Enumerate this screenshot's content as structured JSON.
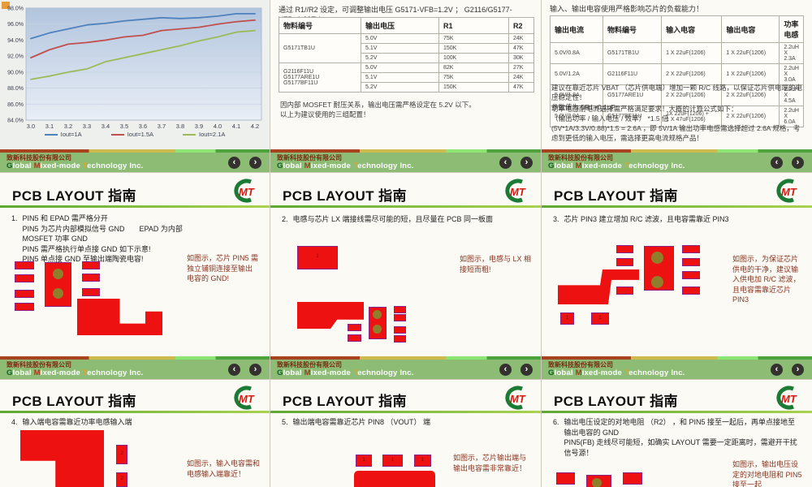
{
  "logo": {
    "text": "MT"
  },
  "footer": {
    "company_cn": "致新科技股份有限公司",
    "en_g": "G",
    "en_lobal": "lobal ",
    "en_m": "M",
    "en_ixed": "ixed-mode ",
    "en_t": "T",
    "en_rest": "echnology Inc.",
    "prev_icon": "‹",
    "next_icon": "›"
  },
  "chart_data": {
    "type": "line",
    "x": [
      3.0,
      3.1,
      3.2,
      3.3,
      3.4,
      3.5,
      3.6,
      3.7,
      3.8,
      3.9,
      4.0,
      4.1,
      4.2
    ],
    "xtick_labels": [
      "3.0",
      "3.1",
      "3.2",
      "3.3",
      "3.4",
      "3.5",
      "3.6",
      "3.7",
      "3.8",
      "3.9",
      "4.0",
      "4.1",
      "4.2"
    ],
    "ylim": [
      84,
      98
    ],
    "ytick_step": 2,
    "ytick_labels": [
      "84.0%",
      "86.0%",
      "88.0%",
      "90.0%",
      "92.0%",
      "94.0%",
      "96.0%",
      "98.0%"
    ],
    "grid": true,
    "legend_position": "bottom",
    "title": "",
    "xlabel": "",
    "ylabel": "",
    "series": [
      {
        "name": "Iout=1A",
        "color": "#4f81bd",
        "values": [
          94.2,
          94.9,
          95.4,
          95.9,
          96.1,
          96.4,
          96.6,
          96.8,
          96.7,
          96.8,
          97.0,
          97.3,
          97.3
        ]
      },
      {
        "name": "Iout=1.5A",
        "color": "#c0504d",
        "values": [
          91.8,
          92.8,
          93.5,
          93.7,
          94.0,
          94.4,
          94.6,
          95.2,
          95.4,
          95.6,
          96.0,
          96.3,
          96.5
        ]
      },
      {
        "name": "Iout=2.1A",
        "color": "#9bbb59",
        "values": [
          89.1,
          89.5,
          90.0,
          90.4,
          91.3,
          91.8,
          92.3,
          92.8,
          93.3,
          93.9,
          94.4,
          95.0,
          95.2
        ]
      }
    ]
  },
  "slides": {
    "pcb_title": "PCB LAYOUT 指南",
    "slide2": {
      "intro": "通过 R1//R2 设定，可调整输出电压  G5171-VFB=1.2V ；  G2116/G5177-VFB=1.227V",
      "table": {
        "headers": [
          "物料编号",
          "输出电压",
          "R1",
          "R2"
        ],
        "groups": [
          {
            "part": "G5171TB1U",
            "rows": [
              [
                "5.0V",
                "75K",
                "24K"
              ],
              [
                "5.1V",
                "150K",
                "47K"
              ],
              [
                "5.2V",
                "100K",
                "30K"
              ]
            ]
          },
          {
            "part": "G2116F11U\nG5177ARE1U\nG5177BF11U",
            "rows": [
              [
                "5.0V",
                "82K",
                "27K"
              ],
              [
                "5.1V",
                "75K",
                "24K"
              ],
              [
                "5.2V",
                "150K",
                "47K"
              ]
            ]
          }
        ]
      },
      "note": "因内部 MOSFET 耐压关系，输出电压需严格设定在 5.2V 以下。\n以上为建议使用的三组配置！"
    },
    "slide3": {
      "intro": "输入、输出电容使用严格影响芯片的负载能力！",
      "table": {
        "headers": [
          "输出电流",
          "物料编号",
          "输入电容",
          "输出电容",
          "功率电感"
        ],
        "rows": [
          [
            "5.0V/0.8A",
            "G5171TB1U",
            "1 X 22uF(1206)",
            "1 X 22uF(1206)",
            "2.2uH X 2.3A"
          ],
          [
            "5.0V/1.2A",
            "G2116F11U",
            "2 X 22uF(1206)",
            "1 X 22uF(1206)",
            "2.2uH X 3.0A"
          ],
          [
            "5.0V/1.8A",
            "G5177ARE1U",
            "2 X 22uF(1206)",
            "2 X 22uF(1206)",
            "2.2uH X 4.5A"
          ],
          [
            "5.0V/2.0A",
            "G5177BF11U",
            "1X 22uF(1206) +\n1 X 47uF(1206)",
            "2 X 22uF(1206)",
            "2.2uH X 6.0A"
          ]
        ]
      },
      "note1": "建议在靠近芯片 VBAT （芯片供电端）增加一颗 R/C 线路，以保证芯片供电端的电压稳定性！\n参数值为 5R1+0.1uF",
      "note2": "功率电感耐电流选择需严格满足要求！大概的计算公式如下：\n（输出功率 / 输入电压 / 效率） *1.5 倍\n(5V*1A/3.3V/0.88)*1.5 = 2.6A ，即 5V/1A 输出功率电感需选择超过 2.6A 规格，考虑到更低的输入电压，需选择更高电流规格产品！"
    },
    "slide4": {
      "num": "1.",
      "body": "PIN5 和 EPAD 需严格分开\nPIN5 为芯片内部模拟信号 GND　　EPAD 为内部 MOSFET 功率 GND\nPIN5 需严格执行单点接 GND 如下示意!\nPIN5 单点接 GND 至输出端陶瓷电容!",
      "caption": "如图示，芯片 PIN5 需独立铺铜连接至输出电容的 GND!"
    },
    "slide5": {
      "num": "2.",
      "body": "电感与芯片 LX 端接线需尽可能的短，且尽量在 PCB 同一板面",
      "caption": "如图示，电感与 LX 相接短而粗!",
      "pad_label": "1"
    },
    "slide6": {
      "num": "3.",
      "body": "芯片 PIN3 建立增加 R/C 滤波，且电容需靠近 PIN3",
      "caption": "如图示，为保证芯片供电的干净，建议输入供电加 R/C 滤波，且电容需靠近芯片 PIN3",
      "pad_label": "1"
    },
    "slide7": {
      "num": "4.",
      "body": "输入端电容需靠近功率电感输入端",
      "caption": "如图示，输入电容需和电感输入端靠近！",
      "pad_label": "2"
    },
    "slide8": {
      "num": "5.",
      "body": "输出端电容需靠近芯片 PIN8 （VOUT） 端",
      "caption": "如图示，芯片输出端与输出电容需非常靠近！",
      "pad_label": "1"
    },
    "slide9": {
      "num": "6.",
      "body": "输出电压设定的对地电阻 （R2） ，和 PIN5 接至一起后，再单点接地至输出电容的 GND\nPIN5(FB) 走线尽可能短，如确实 LAYOUT 需要一定距离时，需避开干扰信号源！",
      "caption": "如图示，输出电压设定的对地电阻和 PIN5 接至一起"
    }
  }
}
